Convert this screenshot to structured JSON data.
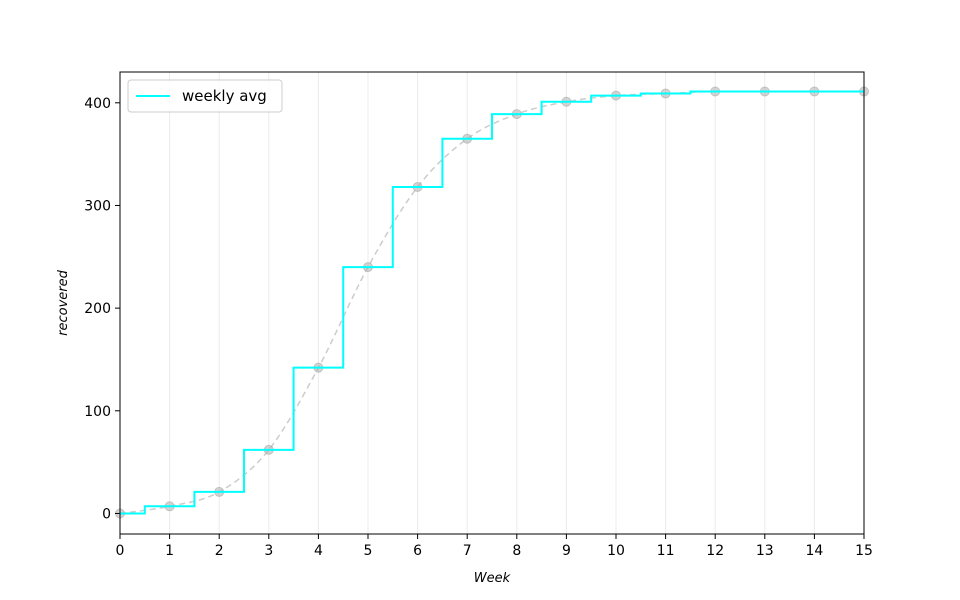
{
  "chart_data": {
    "type": "line",
    "title": "",
    "xlabel": "Week",
    "ylabel": "recovered",
    "xlim": [
      0,
      15
    ],
    "ylim": [
      -20,
      430
    ],
    "xticks": [
      0,
      1,
      2,
      3,
      4,
      5,
      6,
      7,
      8,
      9,
      10,
      11,
      12,
      13,
      14,
      15
    ],
    "yticks": [
      0,
      100,
      200,
      300,
      400
    ],
    "grid": "vertical",
    "legend_position": "top-left",
    "series": [
      {
        "name": "weekly avg",
        "style": "step-mid",
        "color": "#00ffff",
        "x": [
          0,
          1,
          2,
          3,
          4,
          5,
          6,
          7,
          8,
          9,
          10,
          11,
          12,
          13,
          14,
          15
        ],
        "y": [
          0,
          7,
          21,
          62,
          142,
          240,
          318,
          365,
          389,
          401,
          407,
          409,
          411,
          411,
          411,
          411
        ]
      },
      {
        "style": "dashed-markers",
        "color": "#bbbbbb",
        "x": [
          0,
          1,
          2,
          3,
          4,
          5,
          6,
          7,
          8,
          9,
          10,
          11,
          12,
          13,
          14,
          15
        ],
        "y": [
          0,
          7,
          21,
          62,
          142,
          240,
          318,
          365,
          389,
          401,
          407,
          409,
          411,
          411,
          411,
          411
        ]
      }
    ]
  }
}
